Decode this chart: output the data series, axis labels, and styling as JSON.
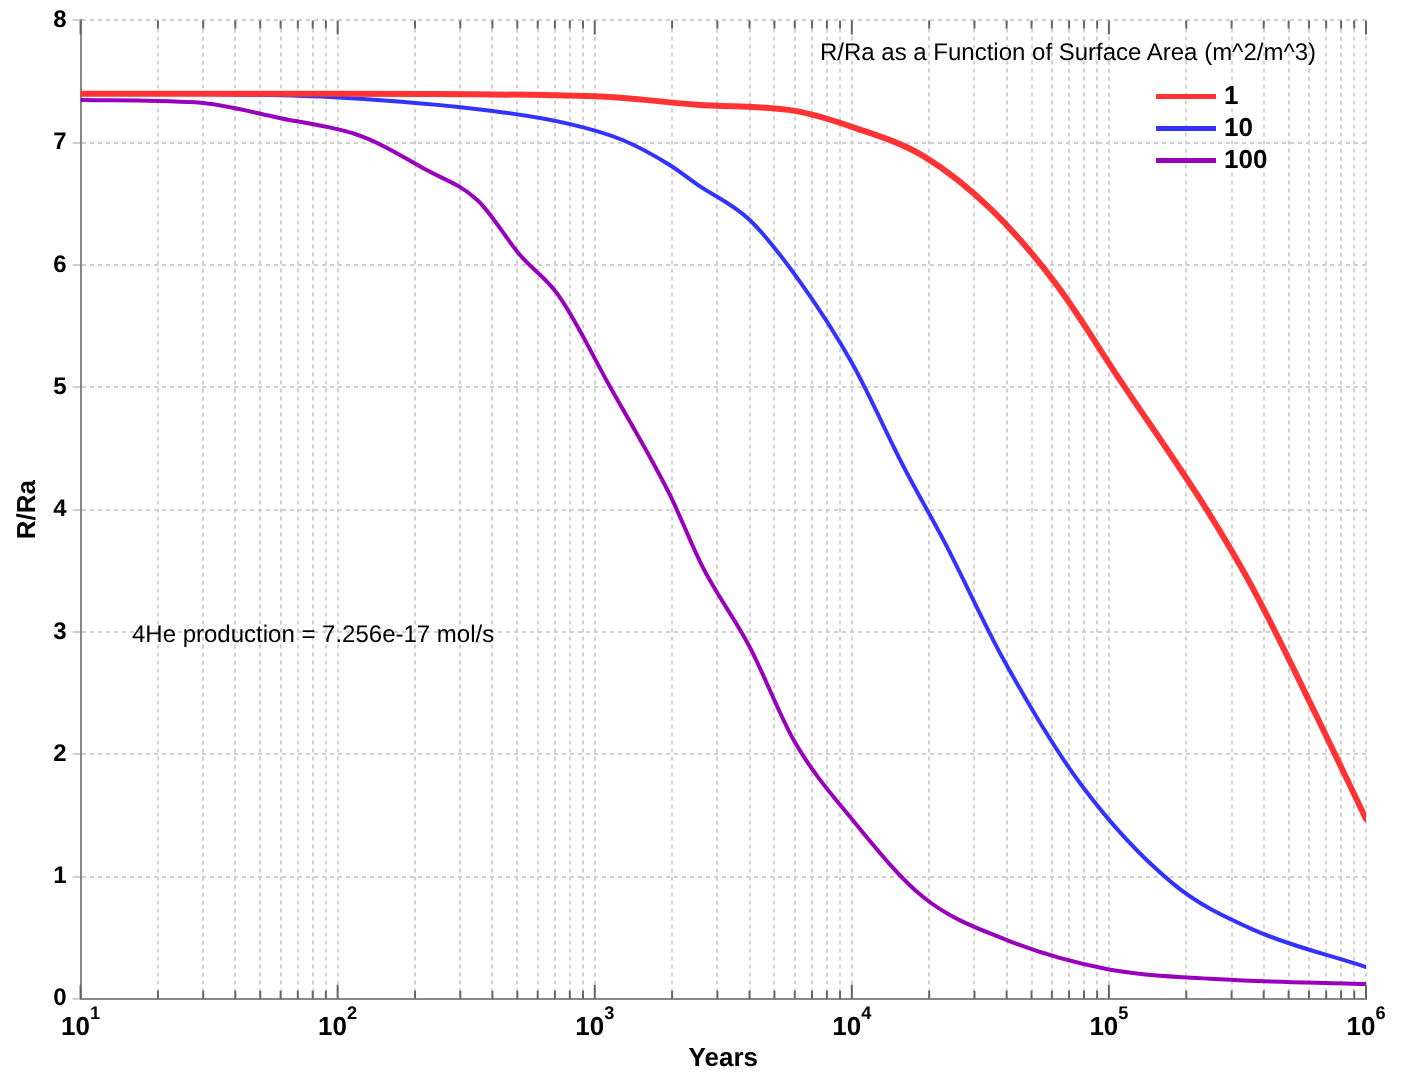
{
  "chart_data": {
    "type": "line",
    "xlabel": "Years",
    "ylabel": "R/Ra",
    "legend_title": "R/Ra as a Function of Surface Area (m^2/m^3)",
    "annotations": [
      "4He production = 7.256e-17 mol/s"
    ],
    "log": "x",
    "xlim": [
      10,
      1000000
    ],
    "ylim": [
      0,
      8
    ],
    "xticks": [
      {
        "value": 10,
        "label": "10$^{1}$"
      },
      {
        "value": 20,
        "label": null
      },
      {
        "value": 30,
        "label": null
      },
      {
        "value": 40,
        "label": null
      },
      {
        "value": 50,
        "label": null
      },
      {
        "value": 60,
        "label": null
      },
      {
        "value": 70,
        "label": null
      },
      {
        "value": 80,
        "label": null
      },
      {
        "value": 90,
        "label": null
      },
      {
        "value": 100,
        "label": "10$^{2}$"
      },
      {
        "value": 200,
        "label": null
      },
      {
        "value": 300,
        "label": null
      },
      {
        "value": 400,
        "label": null
      },
      {
        "value": 500,
        "label": null
      },
      {
        "value": 600,
        "label": null
      },
      {
        "value": 700,
        "label": null
      },
      {
        "value": 800,
        "label": null
      },
      {
        "value": 900,
        "label": null
      },
      {
        "value": 1000,
        "label": "10$^{3}$"
      },
      {
        "value": 2000,
        "label": null
      },
      {
        "value": 3000,
        "label": null
      },
      {
        "value": 4000,
        "label": null
      },
      {
        "value": 5000,
        "label": null
      },
      {
        "value": 6000,
        "label": null
      },
      {
        "value": 7000,
        "label": null
      },
      {
        "value": 8000,
        "label": null
      },
      {
        "value": 9000,
        "label": null
      },
      {
        "value": 10000,
        "label": "10$^{4}$"
      },
      {
        "value": 20000,
        "label": null
      },
      {
        "value": 30000,
        "label": null
      },
      {
        "value": 40000,
        "label": null
      },
      {
        "value": 50000,
        "label": null
      },
      {
        "value": 60000,
        "label": null
      },
      {
        "value": 70000,
        "label": null
      },
      {
        "value": 80000,
        "label": null
      },
      {
        "value": 90000,
        "label": null
      },
      {
        "value": 100000,
        "label": "10$^{5}$"
      },
      {
        "value": 200000,
        "label": null
      },
      {
        "value": 300000,
        "label": null
      },
      {
        "value": 400000,
        "label": null
      },
      {
        "value": 500000,
        "label": null
      },
      {
        "value": 600000,
        "label": null
      },
      {
        "value": 700000,
        "label": null
      },
      {
        "value": 800000,
        "label": null
      },
      {
        "value": 900000,
        "label": null
      },
      {
        "value": 1000000,
        "label": "10$^{6}$"
      }
    ],
    "yticks": [
      0,
      1,
      2,
      3,
      4,
      5,
      6,
      7,
      8
    ],
    "grid": true,
    "legend": "top right",
    "marker": "none",
    "line_style": "solid",
    "series": [
      {
        "name": "1",
        "color": "#ff3333",
        "x": [
          10,
          100,
          1000,
          2500,
          6000,
          10000,
          19000,
          35000,
          62000,
          112000,
          240000,
          360000,
          650000,
          1000000
        ],
        "values": [
          7.4,
          7.4,
          7.38,
          7.31,
          7.26,
          7.13,
          6.89,
          6.45,
          5.85,
          5.04,
          4.0,
          3.37,
          2.29,
          1.47
        ]
      },
      {
        "name": "10",
        "color": "#3333ff",
        "x": [
          28,
          100,
          400,
          810,
          1290,
          1950,
          2500,
          4000,
          6350,
          10000,
          16000,
          23000,
          39000,
          78000,
          178000,
          360000,
          1000000
        ],
        "values": [
          7.4,
          7.37,
          7.26,
          7.15,
          7.02,
          6.82,
          6.66,
          6.37,
          5.85,
          5.2,
          4.34,
          3.73,
          2.77,
          1.75,
          0.94,
          0.57,
          0.26
        ]
      },
      {
        "name": "100",
        "color": "#9900bb",
        "x": [
          10,
          28,
          60,
          125,
          220,
          350,
          513,
          724,
          1150,
          1950,
          2630,
          4000,
          6000,
          10000,
          19000,
          39000,
          100000,
          270000,
          1000000
        ],
        "values": [
          7.35,
          7.33,
          7.2,
          7.05,
          6.78,
          6.53,
          6.08,
          5.75,
          5.0,
          4.13,
          3.53,
          2.88,
          2.1,
          1.47,
          0.83,
          0.49,
          0.24,
          0.16,
          0.12
        ]
      }
    ]
  }
}
